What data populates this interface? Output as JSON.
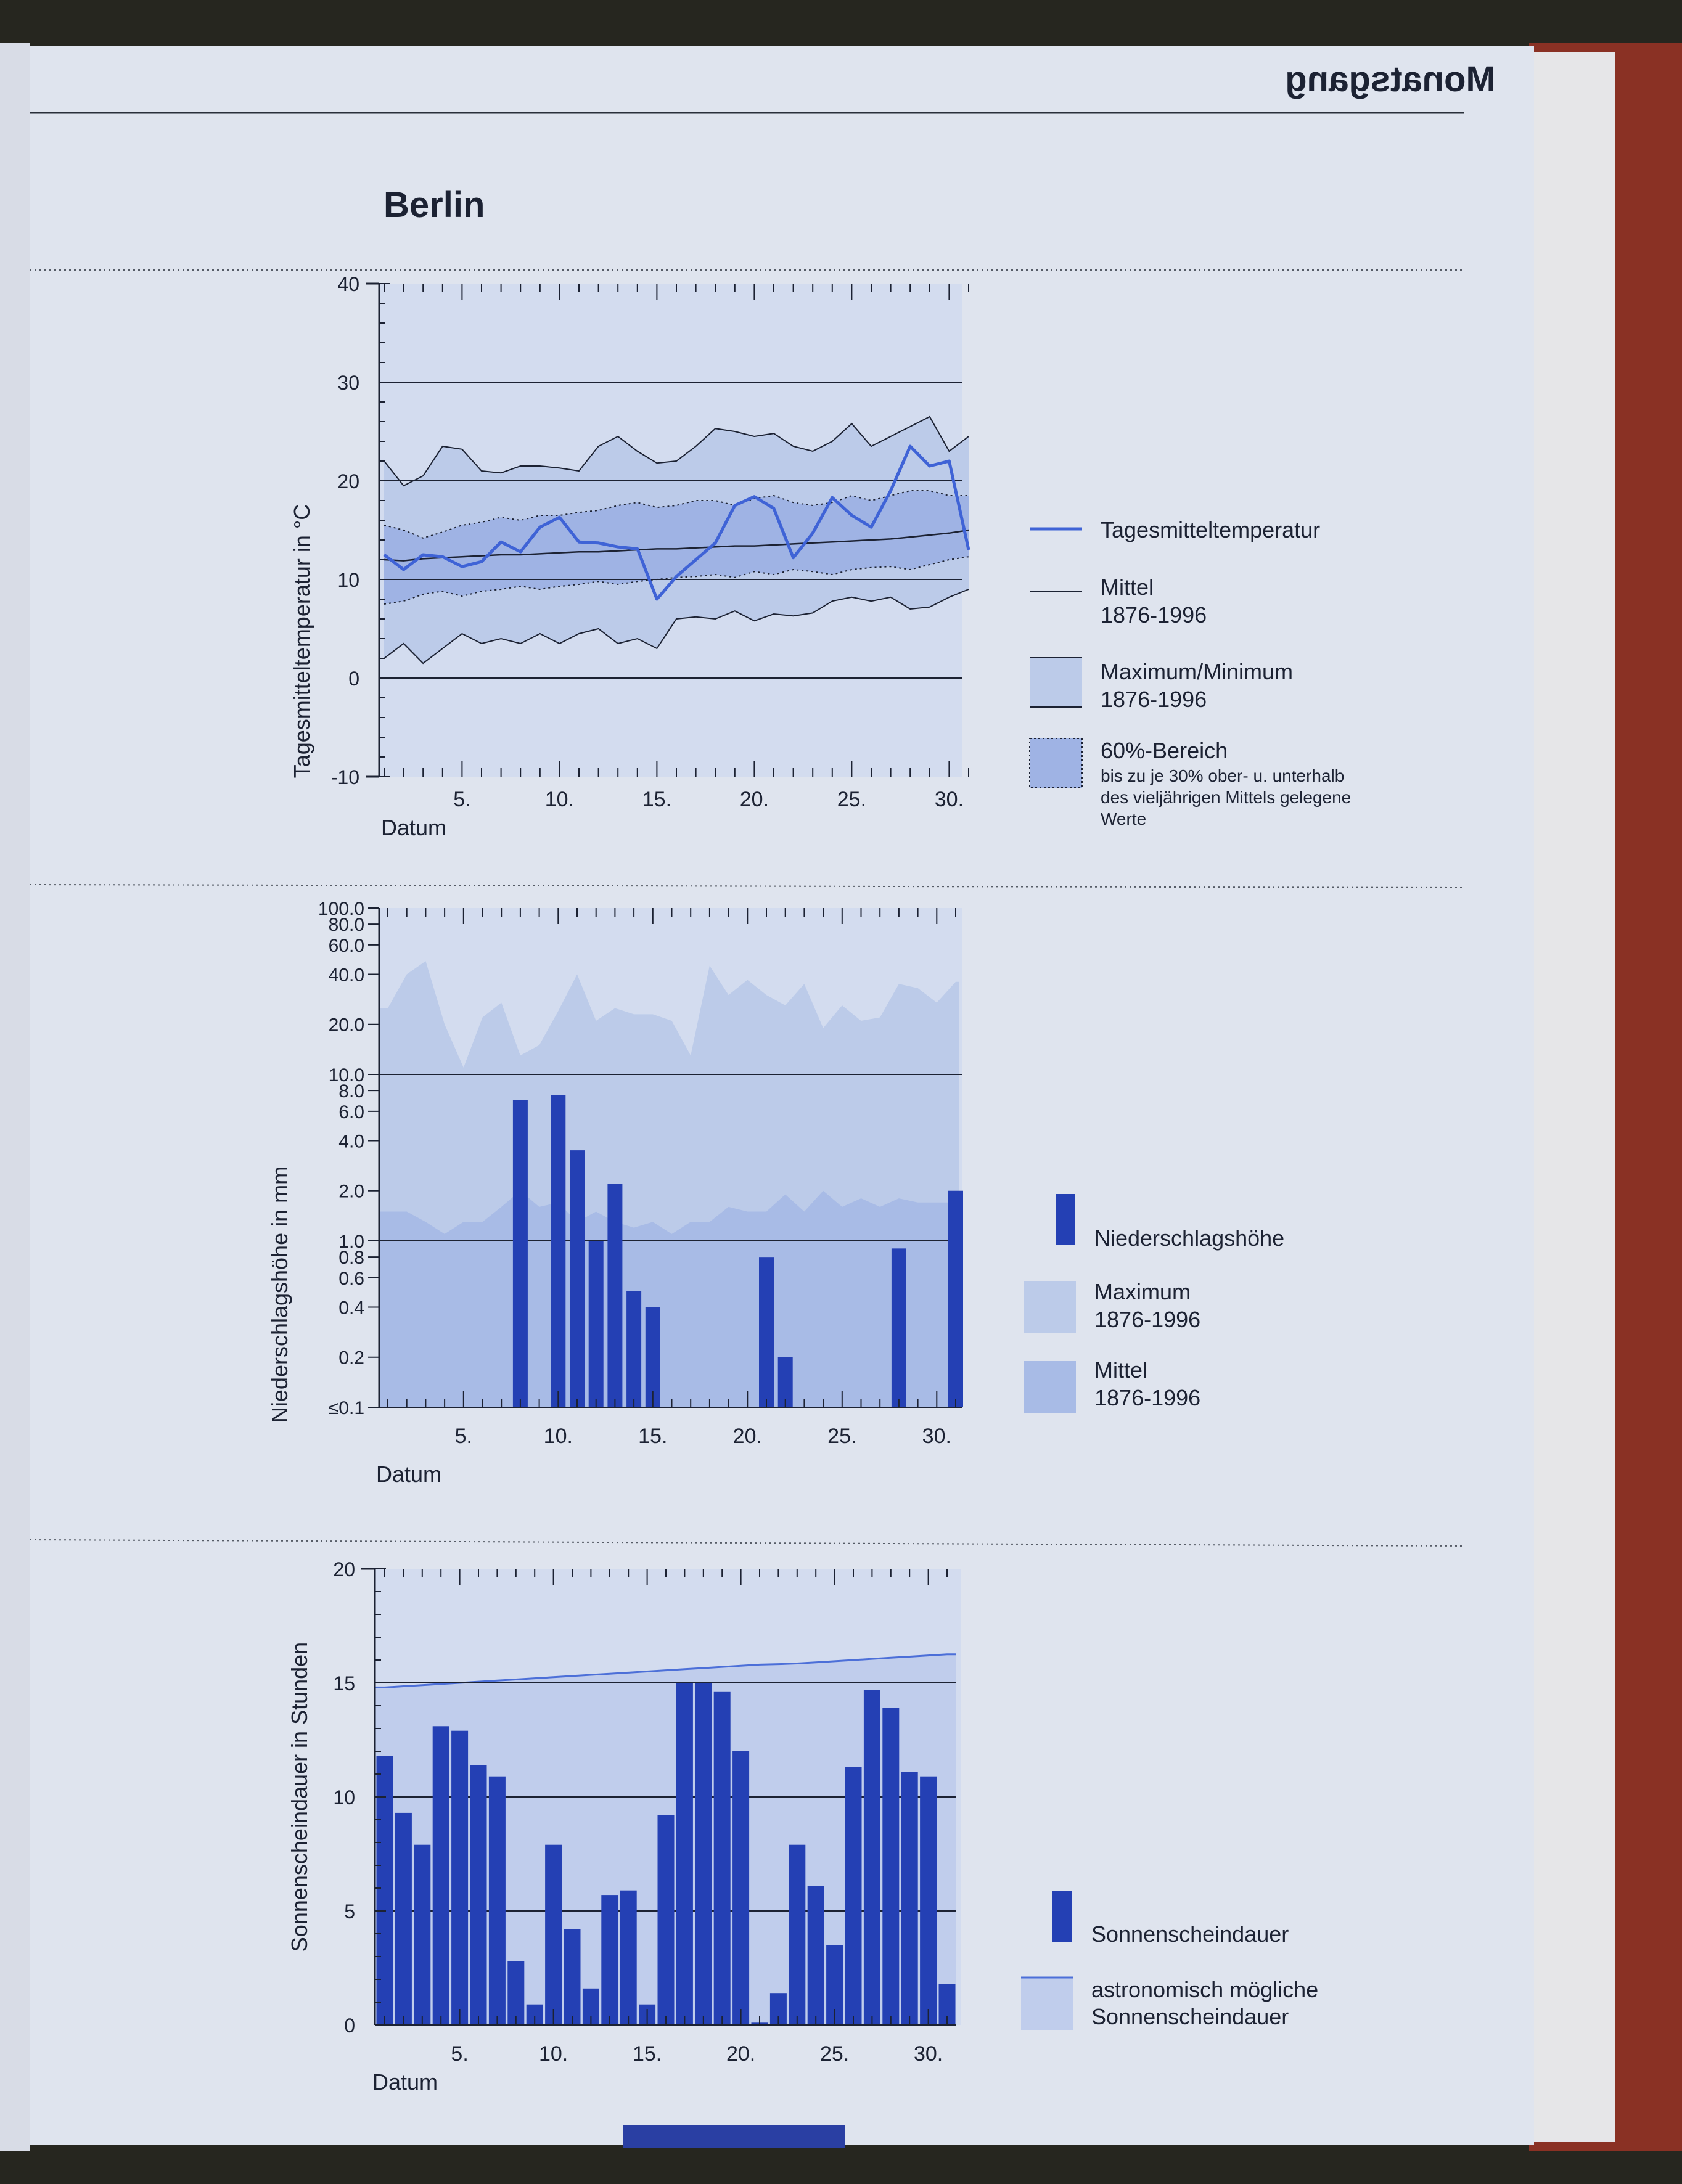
{
  "page": {
    "title": "Berlin",
    "header_mirror": "Monatsgang",
    "colors": {
      "page": "#dfe4ee",
      "plot_bg": "#d3dcef",
      "max_band": "#bccbe9",
      "range60_band": "#9fb3e4",
      "mittel_band": "#a8bbe6",
      "astro_band": "#c0cdec",
      "bar": "#2440b4",
      "temp_line": "#3f63d6",
      "ink": "#1c2233"
    }
  },
  "chart_data": [
    {
      "type": "line",
      "panel": "temperature",
      "title": "",
      "xlabel": "Datum",
      "ylabel": "Tagesmitteltemperatur in °C",
      "ylim": [
        -10,
        40
      ],
      "yticks": [
        "-10",
        "0",
        "10",
        "20",
        "30",
        "40"
      ],
      "xticks": [
        "5.",
        "10.",
        "15.",
        "20.",
        "25.",
        "30."
      ],
      "x": [
        1,
        2,
        3,
        4,
        5,
        6,
        7,
        8,
        9,
        10,
        11,
        12,
        13,
        14,
        15,
        16,
        17,
        18,
        19,
        20,
        21,
        22,
        23,
        24,
        25,
        26,
        27,
        28,
        29,
        30,
        31
      ],
      "grid": "horizontal lines at 0, 10, 20, 30",
      "series": [
        {
          "name": "Tagesmitteltemperatur",
          "color": "#3f63d6",
          "values": [
            12.5,
            11.0,
            12.5,
            12.3,
            11.3,
            11.8,
            13.8,
            12.8,
            15.3,
            16.3,
            13.8,
            13.7,
            13.3,
            13.1,
            8.0,
            10.3,
            12.0,
            13.7,
            17.5,
            18.4,
            17.2,
            12.2,
            14.7,
            18.3,
            16.5,
            15.3,
            19.0,
            23.5,
            21.5,
            22.0,
            13.0
          ]
        },
        {
          "name": "Mittel 1876-1996",
          "color": "#1c2233",
          "values": [
            12.0,
            11.9,
            12.1,
            12.2,
            12.3,
            12.4,
            12.5,
            12.5,
            12.6,
            12.7,
            12.8,
            12.8,
            12.9,
            13.0,
            13.1,
            13.1,
            13.2,
            13.3,
            13.4,
            13.4,
            13.5,
            13.6,
            13.7,
            13.8,
            13.9,
            14.0,
            14.1,
            14.3,
            14.5,
            14.7,
            15.0
          ]
        },
        {
          "name": "Maximum 1876-1996",
          "values": [
            22,
            19.5,
            20.5,
            23.5,
            23.2,
            21.0,
            20.8,
            21.5,
            21.5,
            21.3,
            21.0,
            23.5,
            24.5,
            23.0,
            21.8,
            22.0,
            23.5,
            25.3,
            25.0,
            24.5,
            24.8,
            23.5,
            23.0,
            24.0,
            25.8,
            23.5,
            24.5,
            25.5,
            26.5,
            23.0,
            24.5
          ]
        },
        {
          "name": "Minimum 1876-1996",
          "values": [
            2,
            3.5,
            1.5,
            3,
            4.5,
            3.5,
            4,
            3.5,
            4.5,
            3.5,
            4.5,
            5,
            3.5,
            4,
            3,
            6,
            6.2,
            6,
            6.8,
            5.8,
            6.5,
            6.3,
            6.6,
            7.8,
            8.2,
            7.8,
            8.2,
            7,
            7.2,
            8.2,
            9
          ]
        },
        {
          "name": "60%-Bereich oben",
          "values": [
            15.5,
            15.0,
            14.2,
            14.8,
            15.5,
            15.8,
            16.3,
            16.0,
            16.5,
            16.5,
            16.8,
            17.0,
            17.5,
            17.8,
            17.3,
            17.5,
            18.0,
            18.0,
            17.5,
            18.2,
            18.5,
            17.8,
            17.5,
            17.8,
            18.5,
            18.0,
            18.5,
            19.0,
            19.0,
            18.5,
            18.5
          ]
        },
        {
          "name": "60%-Bereich unten",
          "values": [
            7.5,
            7.8,
            8.5,
            8.8,
            8.3,
            8.8,
            9.0,
            9.3,
            9.0,
            9.3,
            9.5,
            9.8,
            9.5,
            9.8,
            10.0,
            10.2,
            10.3,
            10.5,
            10.2,
            10.8,
            10.5,
            11.0,
            10.8,
            10.5,
            11.0,
            11.2,
            11.3,
            11.0,
            11.5,
            12.0,
            12.3
          ]
        }
      ],
      "legend": [
        {
          "label": "Tagesmitteltemperatur"
        },
        {
          "label": "Mittel",
          "sub": "1876-1996"
        },
        {
          "label": "Maximum/Minimum",
          "sub": "1876-1996"
        },
        {
          "label": "60%-Bereich",
          "sub": "bis zu je 30% ober- u. unterhalb",
          "sub2": "des vieljährigen Mittels gelegene",
          "sub3": "Werte"
        }
      ]
    },
    {
      "type": "bar",
      "panel": "precipitation",
      "title": "",
      "xlabel": "Datum",
      "ylabel": "Niederschlagshöhe in mm",
      "yscale": "log",
      "ylim": [
        0.1,
        100
      ],
      "yticks": [
        "100.0",
        "80.0",
        "60.0",
        "40.0",
        "20.0",
        "10.0",
        "8.0",
        "6.0",
        "4.0",
        "2.0",
        "1.0",
        "0.8",
        "0.6",
        "0.4",
        "0.2",
        "≤0.1"
      ],
      "xticks": [
        "5.",
        "10.",
        "15.",
        "20.",
        "25.",
        "30."
      ],
      "x": [
        1,
        2,
        3,
        4,
        5,
        6,
        7,
        8,
        9,
        10,
        11,
        12,
        13,
        14,
        15,
        16,
        17,
        18,
        19,
        20,
        21,
        22,
        23,
        24,
        25,
        26,
        27,
        28,
        29,
        30,
        31
      ],
      "series": [
        {
          "name": "Niederschlagshöhe",
          "color": "#2440b4",
          "values": [
            0,
            0,
            0,
            0,
            0,
            0,
            0,
            7.0,
            0,
            7.5,
            3.5,
            1.0,
            2.2,
            0.5,
            0.4,
            0,
            0,
            0,
            0,
            0,
            0.8,
            0.2,
            0,
            0,
            0,
            0,
            0,
            0.9,
            0,
            0,
            2.0
          ]
        },
        {
          "name": "Maximum 1876-1996",
          "values": [
            25,
            40,
            48,
            20,
            11,
            22,
            27,
            13,
            15,
            24,
            40,
            21,
            25,
            23,
            23,
            21,
            13,
            45,
            30,
            37,
            30,
            26,
            35,
            19,
            26,
            21,
            22,
            35,
            33,
            27,
            36
          ]
        },
        {
          "name": "Mittel 1876-1996",
          "values": [
            1.5,
            1.5,
            1.3,
            1.1,
            1.3,
            1.3,
            1.6,
            2.0,
            1.6,
            1.7,
            1.3,
            1.5,
            1.3,
            1.2,
            1.3,
            1.1,
            1.3,
            1.3,
            1.6,
            1.5,
            1.5,
            1.9,
            1.5,
            2.0,
            1.6,
            1.8,
            1.6,
            1.8,
            1.7,
            1.7,
            1.7
          ]
        }
      ],
      "legend": [
        {
          "label": "Niederschlagshöhe"
        },
        {
          "label": "Maximum",
          "sub": "1876-1996"
        },
        {
          "label": "Mittel",
          "sub": "1876-1996"
        }
      ]
    },
    {
      "type": "bar",
      "panel": "sunshine",
      "title": "",
      "xlabel": "Datum",
      "ylabel": "Sonnenscheindauer in Stunden",
      "ylim": [
        0,
        20
      ],
      "yticks": [
        "0",
        "5",
        "10",
        "15",
        "20"
      ],
      "xticks": [
        "5.",
        "10.",
        "15.",
        "20.",
        "25.",
        "30."
      ],
      "x": [
        1,
        2,
        3,
        4,
        5,
        6,
        7,
        8,
        9,
        10,
        11,
        12,
        13,
        14,
        15,
        16,
        17,
        18,
        19,
        20,
        21,
        22,
        23,
        24,
        25,
        26,
        27,
        28,
        29,
        30,
        31
      ],
      "series": [
        {
          "name": "Sonnenscheindauer",
          "color": "#2440b4",
          "values": [
            11.8,
            9.3,
            7.9,
            13.1,
            12.9,
            11.4,
            10.9,
            2.8,
            0.9,
            7.9,
            4.2,
            1.6,
            5.7,
            5.9,
            0.9,
            9.2,
            15.0,
            15.0,
            14.6,
            12.0,
            0.1,
            1.4,
            7.9,
            6.1,
            3.5,
            11.3,
            14.7,
            13.9,
            11.1,
            10.9,
            1.8
          ]
        },
        {
          "name": "astronomisch mögliche Sonnenscheindauer",
          "values": [
            14.8,
            14.85,
            14.9,
            14.95,
            15.0,
            15.05,
            15.1,
            15.15,
            15.2,
            15.25,
            15.3,
            15.35,
            15.4,
            15.45,
            15.5,
            15.55,
            15.6,
            15.65,
            15.7,
            15.75,
            15.8,
            15.82,
            15.85,
            15.9,
            15.95,
            16.0,
            16.05,
            16.1,
            16.15,
            16.2,
            16.25
          ]
        }
      ],
      "legend": [
        {
          "label": "Sonnenscheindauer"
        },
        {
          "label": "astronomisch mögliche",
          "sub": "Sonnenscheindauer"
        }
      ]
    }
  ]
}
